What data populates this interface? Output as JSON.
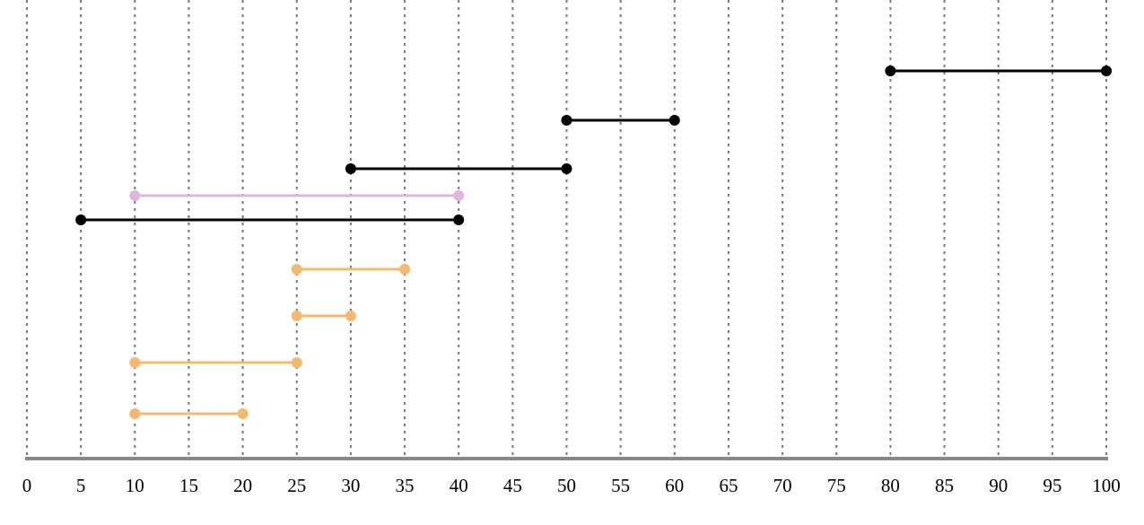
{
  "chart_data": {
    "type": "interval",
    "xlim": [
      0,
      100
    ],
    "xticks": [
      0,
      5,
      10,
      15,
      20,
      25,
      30,
      35,
      40,
      45,
      50,
      55,
      60,
      65,
      70,
      75,
      80,
      85,
      90,
      95,
      100
    ],
    "grid": true,
    "intervals": [
      {
        "start": 80,
        "end": 100,
        "color": "#000000"
      },
      {
        "start": 50,
        "end": 60,
        "color": "#000000"
      },
      {
        "start": 30,
        "end": 50,
        "color": "#000000"
      },
      {
        "start": 10,
        "end": 40,
        "color": "#dcb6dc"
      },
      {
        "start": 5,
        "end": 40,
        "color": "#000000"
      },
      {
        "start": 25,
        "end": 35,
        "color": "#f5b86e"
      },
      {
        "start": 25,
        "end": 30,
        "color": "#f5b86e"
      },
      {
        "start": 10,
        "end": 25,
        "color": "#f5b86e"
      },
      {
        "start": 10,
        "end": 20,
        "color": "#f5b86e"
      }
    ]
  }
}
